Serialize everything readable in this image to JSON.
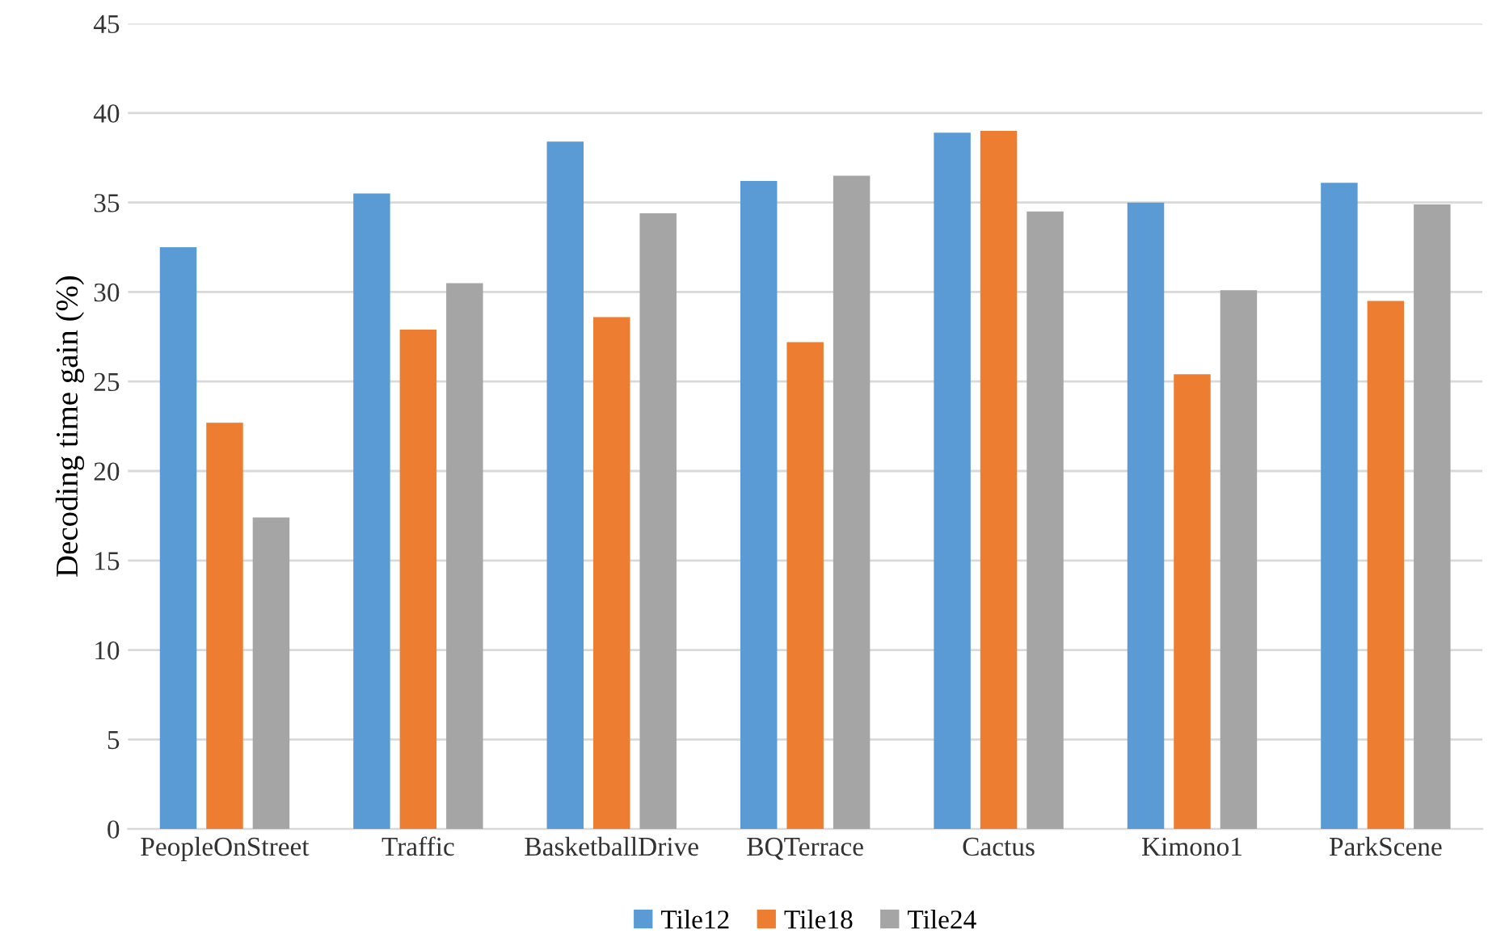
{
  "chart_data": {
    "type": "bar",
    "ylabel": "Decoding time gain (%)",
    "categories": [
      "PeopleOnStreet",
      "Traffic",
      "BasketballDrive",
      "BQTerrace",
      "Cactus",
      "Kimono1",
      "ParkScene"
    ],
    "series": [
      {
        "name": "Tile12",
        "color": "#5b9bd5",
        "values": [
          32.5,
          35.5,
          38.4,
          36.2,
          38.9,
          35.0,
          36.1
        ]
      },
      {
        "name": "Tile18",
        "color": "#ed7d31",
        "values": [
          22.7,
          27.9,
          28.6,
          27.2,
          39.0,
          25.4,
          29.5
        ]
      },
      {
        "name": "Tile24",
        "color": "#a5a5a5",
        "values": [
          17.4,
          30.5,
          34.4,
          36.5,
          34.5,
          30.1,
          34.9
        ]
      }
    ],
    "ylim": [
      0,
      45
    ],
    "yticks": [
      0,
      5,
      10,
      15,
      20,
      25,
      30,
      35,
      40,
      45
    ],
    "grid": "y",
    "legend": "bottom"
  }
}
